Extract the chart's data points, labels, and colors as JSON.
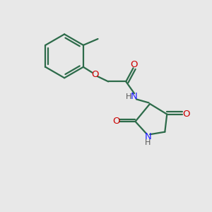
{
  "background_color": "#e8e8e8",
  "bond_color": "#2d6b4a",
  "bond_width": 1.6,
  "N_color": "#1a1aff",
  "O_color": "#cc0000",
  "C_color": "#000000",
  "text_fontsize": 9.5,
  "figsize": [
    3.0,
    3.0
  ],
  "dpi": 100,
  "xlim": [
    0,
    10
  ],
  "ylim": [
    0,
    10
  ]
}
